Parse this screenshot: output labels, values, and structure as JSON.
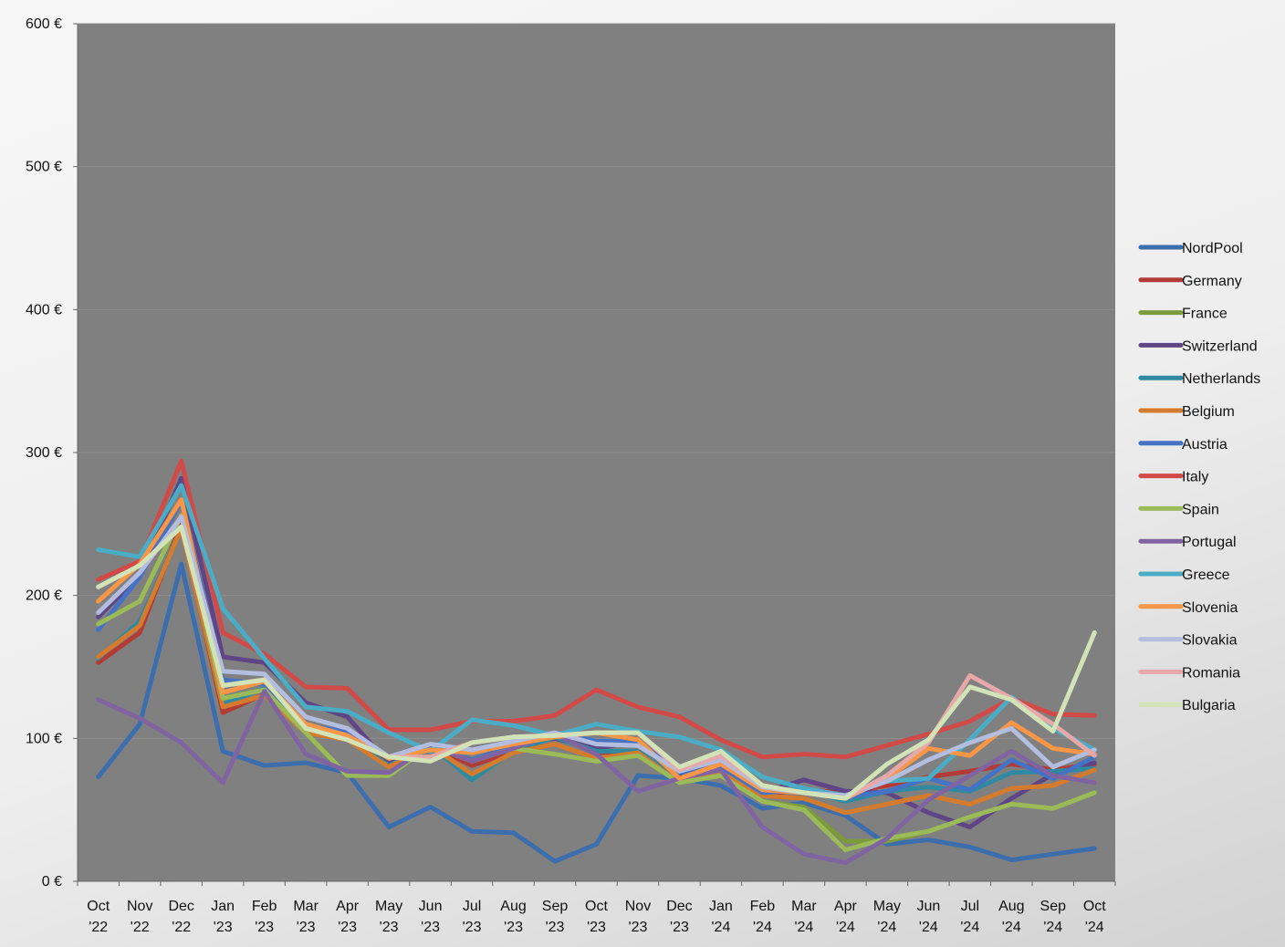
{
  "chart_data": {
    "type": "line",
    "title": "",
    "xlabel": "",
    "ylabel": "",
    "ylim": [
      0,
      600
    ],
    "yticks": [
      "0 €",
      "100 €",
      "200 €",
      "300 €",
      "400 €",
      "500 €",
      "600 €"
    ],
    "categories": [
      [
        "Oct",
        "'22"
      ],
      [
        "Nov",
        "'22"
      ],
      [
        "Dec",
        "'22"
      ],
      [
        "Jan",
        "'23"
      ],
      [
        "Feb",
        "'23"
      ],
      [
        "Mar",
        "'23"
      ],
      [
        "Apr",
        "'23"
      ],
      [
        "May",
        "'23"
      ],
      [
        "Jun",
        "'23"
      ],
      [
        "Jul",
        "'23"
      ],
      [
        "Aug",
        "'23"
      ],
      [
        "Sep",
        "'23"
      ],
      [
        "Oct",
        "'23"
      ],
      [
        "Nov",
        "'23"
      ],
      [
        "Dec",
        "'23"
      ],
      [
        "Jan",
        "'24"
      ],
      [
        "Feb",
        "'24"
      ],
      [
        "Mar",
        "'24"
      ],
      [
        "Apr",
        "'24"
      ],
      [
        "May",
        "'24"
      ],
      [
        "Jun",
        "'24"
      ],
      [
        "Jul",
        "'24"
      ],
      [
        "Aug",
        "'24"
      ],
      [
        "Sep",
        "'24"
      ],
      [
        "Oct",
        "'24"
      ]
    ],
    "grid": true,
    "plot_background": "#808080",
    "legend_position": "right",
    "series": [
      {
        "name": "NordPool",
        "color": "#3c6eae",
        "values": [
          73,
          110,
          222,
          91,
          81,
          83,
          76,
          38,
          52,
          35,
          34,
          14,
          26,
          74,
          72,
          67,
          51,
          55,
          46,
          26,
          29,
          24,
          15,
          19,
          23
        ]
      },
      {
        "name": "Germany",
        "color": "#b23b37",
        "values": [
          153,
          174,
          250,
          118,
          131,
          104,
          101,
          82,
          95,
          81,
          91,
          102,
          90,
          91,
          70,
          76,
          61,
          64,
          62,
          67,
          73,
          77,
          82,
          78,
          82
        ]
      },
      {
        "name": "France",
        "color": "#7d9a3c",
        "values": [
          180,
          196,
          256,
          128,
          134,
          104,
          74,
          74,
          95,
          84,
          93,
          89,
          84,
          88,
          69,
          74,
          56,
          52,
          28,
          28,
          35,
          45,
          54,
          51,
          62
        ]
      },
      {
        "name": "Switzerland",
        "color": "#5f4585",
        "values": [
          185,
          214,
          282,
          157,
          153,
          125,
          115,
          82,
          95,
          84,
          96,
          100,
          93,
          98,
          73,
          78,
          62,
          71,
          63,
          62,
          48,
          38,
          58,
          75,
          83
        ]
      },
      {
        "name": "Netherlands",
        "color": "#2f8aa1",
        "values": [
          156,
          182,
          247,
          124,
          135,
          104,
          101,
          81,
          95,
          71,
          91,
          101,
          91,
          91,
          71,
          76,
          62,
          64,
          56,
          63,
          66,
          63,
          76,
          77,
          79
        ]
      },
      {
        "name": "Belgium",
        "color": "#d47b2e",
        "values": [
          157,
          179,
          247,
          122,
          130,
          104,
          99,
          80,
          95,
          75,
          90,
          96,
          86,
          90,
          69,
          76,
          60,
          58,
          48,
          54,
          60,
          54,
          65,
          67,
          78
        ]
      },
      {
        "name": "Austria",
        "color": "#4472c4",
        "values": [
          176,
          213,
          266,
          141,
          138,
          109,
          105,
          86,
          94,
          85,
          94,
          104,
          98,
          98,
          76,
          80,
          62,
          64,
          59,
          63,
          72,
          64,
          85,
          72,
          87
        ]
      },
      {
        "name": "Italy",
        "color": "#d24a47",
        "values": [
          211,
          224,
          294,
          174,
          159,
          136,
          135,
          106,
          106,
          112,
          112,
          116,
          134,
          122,
          115,
          99,
          87,
          89,
          87,
          95,
          103,
          112,
          128,
          117,
          116
        ]
      },
      {
        "name": "Spain",
        "color": "#9bbb59",
        "values": [
          180,
          196,
          256,
          128,
          134,
          104,
          74,
          74,
          95,
          84,
          93,
          89,
          84,
          88,
          69,
          74,
          56,
          50,
          22,
          30,
          35,
          45,
          54,
          51,
          62
        ]
      },
      {
        "name": "Portugal",
        "color": "#8064a2",
        "values": [
          127,
          114,
          97,
          69,
          133,
          89,
          77,
          76,
          95,
          84,
          93,
          103,
          89,
          63,
          72,
          78,
          38,
          19,
          13,
          30,
          57,
          74,
          91,
          74,
          69
        ]
      },
      {
        "name": "Greece",
        "color": "#4bacc6",
        "values": [
          232,
          227,
          277,
          191,
          156,
          122,
          119,
          104,
          91,
          113,
          109,
          102,
          110,
          105,
          101,
          92,
          73,
          65,
          60,
          70,
          72,
          99,
          129,
          107,
          92
        ]
      },
      {
        "name": "Slovenia",
        "color": "#f79646",
        "values": [
          196,
          222,
          267,
          132,
          140,
          110,
          102,
          86,
          92,
          90,
          96,
          101,
          104,
          99,
          72,
          82,
          64,
          62,
          58,
          72,
          93,
          88,
          111,
          93,
          89
        ]
      },
      {
        "name": "Slovakia",
        "color": "#b3bde0",
        "values": [
          188,
          216,
          255,
          147,
          145,
          115,
          107,
          87,
          96,
          92,
          98,
          104,
          96,
          95,
          77,
          85,
          66,
          62,
          60,
          70,
          85,
          97,
          107,
          80,
          92
        ]
      },
      {
        "name": "Romania",
        "color": "#e6a8a8",
        "values": [
          206,
          221,
          248,
          137,
          141,
          107,
          99,
          87,
          87,
          97,
          101,
          102,
          104,
          104,
          78,
          88,
          67,
          62,
          58,
          74,
          97,
          144,
          128,
          110,
          88
        ]
      },
      {
        "name": "Bulgaria",
        "color": "#d3e3b8",
        "values": [
          206,
          221,
          248,
          137,
          141,
          107,
          99,
          87,
          84,
          97,
          101,
          102,
          104,
          104,
          80,
          91,
          67,
          62,
          58,
          82,
          99,
          136,
          127,
          105,
          174
        ]
      }
    ]
  }
}
